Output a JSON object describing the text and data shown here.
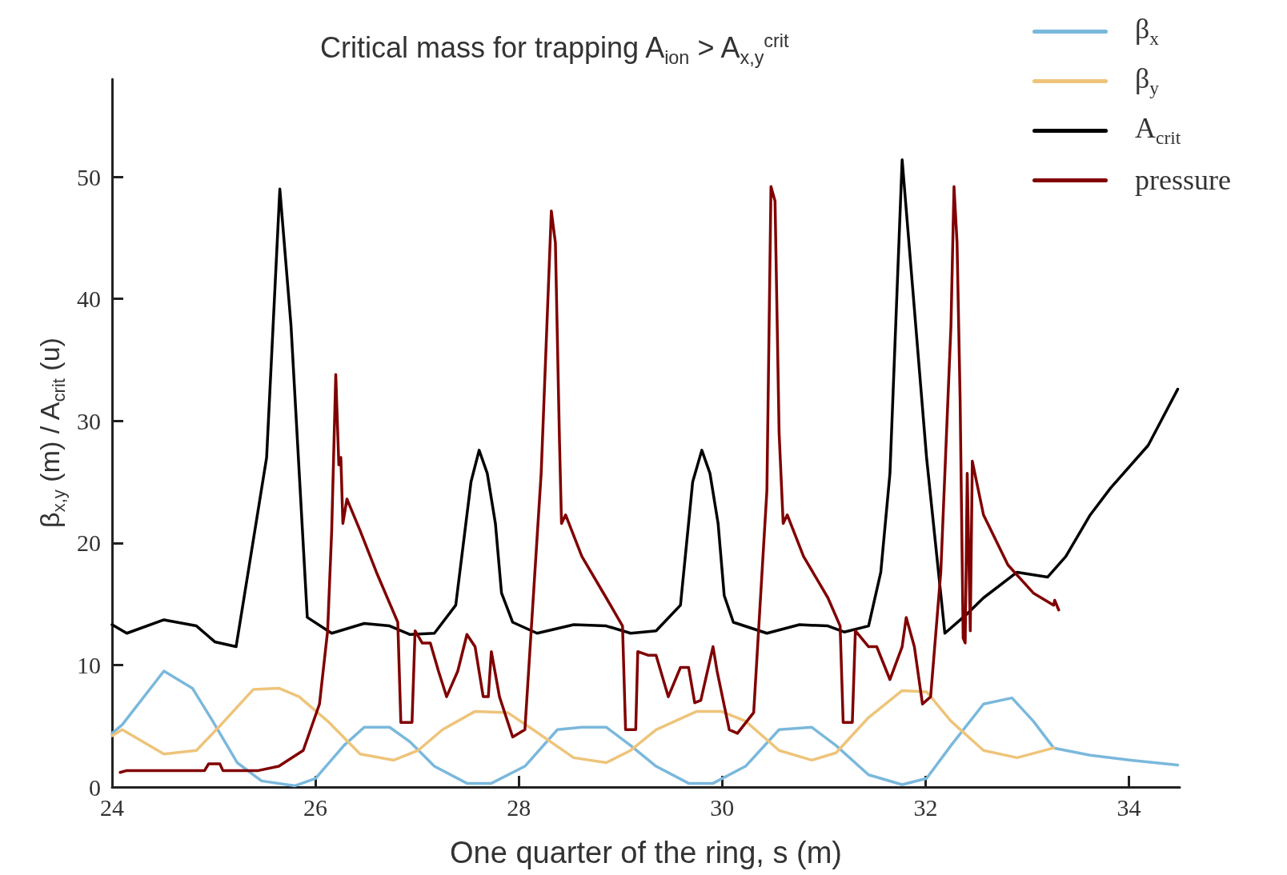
{
  "chart_data": {
    "type": "line",
    "title": "Critical mass for trapping A$_{ion}$ > A$_{x,y}$$^{crit}$",
    "xlabel": "One quarter of the ring, s (m)",
    "ylabel": "β$_{x,y}$ (m) / A$_{crit}$ (u)",
    "xlim": [
      24,
      34.5
    ],
    "xticks": [
      24,
      26,
      28,
      30,
      32,
      34
    ],
    "ylim": [
      0,
      58
    ],
    "yticks": [
      0,
      10,
      20,
      30,
      40,
      50
    ],
    "grid": false,
    "legend": "top right",
    "marker": "none",
    "line_style": "solid",
    "series": [
      {
        "name": "β$_{x}$",
        "color": "#7ab8dc",
        "x": [
          24,
          24.1,
          24.51,
          24.79,
          24.99,
          25.23,
          25.47,
          25.8,
          26,
          26.28,
          26.48,
          26.73,
          26.93,
          27.17,
          27.49,
          27.73,
          28.06,
          28.38,
          28.62,
          28.86,
          29.1,
          29.35,
          29.67,
          29.91,
          30.23,
          30.56,
          30.88,
          31.12,
          31.44,
          31.77,
          32.01,
          32.25,
          32.57,
          32.85,
          33.06,
          33.26,
          33.62,
          34.02,
          34.48
        ],
        "values": [
          4.4,
          5.1,
          9.5,
          8.1,
          5.4,
          2,
          0.5,
          0.1,
          0.7,
          3.4,
          4.9,
          4.9,
          3.7,
          1.7,
          0.3,
          0.3,
          1.7,
          4.7,
          4.9,
          4.9,
          3.4,
          1.7,
          0.3,
          0.3,
          1.7,
          4.7,
          4.9,
          3.4,
          1,
          0.2,
          0.7,
          3.4,
          6.8,
          7.3,
          5.4,
          3.2,
          2.6,
          2.2,
          1.8
        ]
      },
      {
        "name": "β$_{y}$",
        "color": "#eec47a",
        "x": [
          24,
          24.1,
          24.51,
          24.83,
          25.07,
          25.39,
          25.64,
          25.84,
          26.12,
          26.44,
          26.77,
          27.01,
          27.25,
          27.57,
          27.89,
          28.14,
          28.54,
          28.86,
          29.1,
          29.35,
          29.75,
          29.99,
          30.23,
          30.56,
          30.88,
          31.12,
          31.44,
          31.77,
          32.01,
          32.25,
          32.57,
          32.9,
          33.26
        ],
        "values": [
          4.2,
          4.7,
          2.7,
          3,
          5.1,
          8,
          8.1,
          7.4,
          5.4,
          2.7,
          2.2,
          3,
          4.7,
          6.2,
          6.1,
          4.7,
          2.4,
          2,
          3,
          4.7,
          6.2,
          6.2,
          5.4,
          3,
          2.2,
          2.8,
          5.7,
          7.9,
          7.8,
          5.4,
          3,
          2.4,
          3.2
        ]
      },
      {
        "name": "A$_{crit}$",
        "color": "#000000",
        "x": [
          24,
          24.145,
          24.51,
          24.83,
          25.01,
          25.22,
          25.35,
          25.52,
          25.65,
          25.76,
          25.92,
          26.16,
          26.48,
          26.73,
          26.93,
          27.17,
          27.38,
          27.53,
          27.61,
          27.69,
          27.77,
          27.83,
          27.94,
          28.18,
          28.54,
          28.86,
          29.1,
          29.35,
          29.59,
          29.71,
          29.8,
          29.88,
          29.96,
          30.02,
          30.11,
          30.44,
          30.76,
          31.04,
          31.2,
          31.44,
          31.56,
          31.65,
          31.77,
          31.89,
          32.01,
          32.19,
          32.41,
          32.57,
          32.9,
          33.2,
          33.38,
          33.62,
          33.82,
          34.19,
          34.48
        ],
        "values": [
          13.3,
          12.6,
          13.7,
          13.2,
          11.9,
          11.5,
          18.2,
          27,
          49,
          37.8,
          13.9,
          12.6,
          13.4,
          13.2,
          12.5,
          12.6,
          14.9,
          25,
          27.6,
          25.7,
          21.6,
          15.9,
          13.5,
          12.6,
          13.3,
          13.2,
          12.6,
          12.8,
          14.9,
          25,
          27.6,
          25.7,
          21.6,
          15.7,
          13.5,
          12.6,
          13.3,
          13.2,
          12.7,
          13.2,
          17.6,
          25.7,
          51.4,
          39.2,
          27,
          12.6,
          14.2,
          15.5,
          17.6,
          17.2,
          18.9,
          22.3,
          24.5,
          28,
          32.6
        ]
      },
      {
        "name": "pressure",
        "color": "#800000",
        "x": [
          24.08,
          24.145,
          24.91,
          24.95,
          25.06,
          25.09,
          25.44,
          25.64,
          25.88,
          26.04,
          26.12,
          26.16,
          26.2,
          26.23,
          26.25,
          26.27,
          26.31,
          26.44,
          26.6,
          26.81,
          26.84,
          26.95,
          26.98,
          27.05,
          27.13,
          27.21,
          27.29,
          27.4,
          27.49,
          27.57,
          27.65,
          27.7,
          27.73,
          27.81,
          27.94,
          28.06,
          28.22,
          28.32,
          28.36,
          28.4,
          28.42,
          28.46,
          28.62,
          28.86,
          29.02,
          29.05,
          29.15,
          29.17,
          29.27,
          29.35,
          29.47,
          29.59,
          29.67,
          29.73,
          29.79,
          29.91,
          29.95,
          30.07,
          30.15,
          30.31,
          30.44,
          30.48,
          30.52,
          30.56,
          30.6,
          30.64,
          30.8,
          31.04,
          31.16,
          31.19,
          31.28,
          31.31,
          31.44,
          31.52,
          31.65,
          31.77,
          31.81,
          31.89,
          31.97,
          32.05,
          32.15,
          32.25,
          32.28,
          32.31,
          32.34,
          32.37,
          32.39,
          32.41,
          32.44,
          32.46,
          32.57,
          32.81,
          33.06,
          33.26,
          33.27,
          33.31
        ],
        "values": [
          1.2,
          1.35,
          1.35,
          1.9,
          1.9,
          1.35,
          1.35,
          1.7,
          3,
          6.8,
          12.8,
          21,
          33.8,
          26.4,
          27,
          21.6,
          23.6,
          21,
          17.6,
          13.5,
          5.3,
          5.3,
          12.8,
          11.8,
          11.8,
          9.5,
          7.4,
          9.5,
          12.5,
          11.5,
          7.4,
          7.4,
          11.1,
          7.4,
          4.1,
          4.7,
          25.7,
          47.2,
          44.6,
          28.4,
          21.6,
          22.3,
          18.9,
          15.5,
          13.2,
          4.7,
          4.7,
          11.1,
          10.8,
          10.8,
          7.4,
          9.8,
          9.8,
          6.9,
          7.1,
          11.5,
          9.5,
          4.7,
          4.4,
          6.1,
          24.3,
          49.2,
          48,
          29,
          21.6,
          22.3,
          18.9,
          15.5,
          13.2,
          5.3,
          5.3,
          12.8,
          11.5,
          11.5,
          8.8,
          11.5,
          13.9,
          11.5,
          6.8,
          7.4,
          17.6,
          37.8,
          49.2,
          44.6,
          31.8,
          12.2,
          11.8,
          25.7,
          12.8,
          26.7,
          22.3,
          18.2,
          15.9,
          14.9,
          15.3,
          14.5
        ]
      }
    ]
  }
}
